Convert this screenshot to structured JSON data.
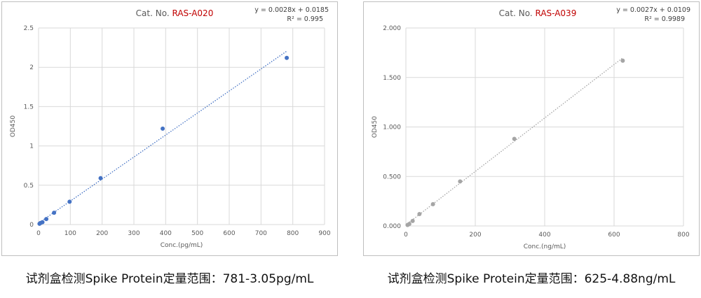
{
  "chart_data": [
    {
      "type": "scatter",
      "title_prefix": "Cat. No.",
      "title_id": "RAS-A020",
      "equation": "y = 0.0028x + 0.0185",
      "r2_text": "R² = 0.995",
      "xlabel": "Conc.(pg/mL)",
      "ylabel": "OD450",
      "xlim": [
        0,
        900
      ],
      "ylim": [
        0,
        2.5
      ],
      "xticks": [
        "0",
        "100",
        "200",
        "300",
        "400",
        "500",
        "600",
        "700",
        "800",
        "900"
      ],
      "yticks": [
        "0",
        "0.5",
        "1",
        "1.5",
        "2",
        "2.5"
      ],
      "grid": true,
      "trendline": {
        "slope": 0.0028,
        "intercept": 0.0185,
        "x_range": [
          3.05,
          781
        ],
        "style": "dotted"
      },
      "series": [
        {
          "x": [
            781,
            390.6,
            195.3,
            97.7,
            48.8,
            24.4,
            12.2,
            6.1,
            3.05
          ],
          "y": [
            2.12,
            1.22,
            0.59,
            0.29,
            0.15,
            0.07,
            0.03,
            0.02,
            0.01
          ]
        }
      ],
      "colors": {
        "point": "#4472c4",
        "trend": "#4472c4"
      },
      "caption": "试剂盒检测Spike Protein定量范围：781-3.05pg/mL"
    },
    {
      "type": "scatter",
      "title_prefix": "Cat. No.",
      "title_id": "RAS-A039",
      "equation": "y = 0.0027x + 0.0109",
      "r2_text": "R² = 0.9989",
      "xlabel": "Conc.(ng/mL)",
      "ylabel": "OD450",
      "xlim": [
        0,
        800
      ],
      "ylim": [
        0,
        2
      ],
      "xticks": [
        "0",
        "200",
        "400",
        "600",
        "800"
      ],
      "yticks": [
        "0.000",
        "0.500",
        "1.000",
        "1.500",
        "2.000"
      ],
      "grid": true,
      "trendline": {
        "slope": 0.0027,
        "intercept": 0.0109,
        "x_range": [
          4.88,
          625
        ],
        "style": "dotted"
      },
      "series": [
        {
          "x": [
            625,
            312.5,
            156.25,
            78.1,
            39.1,
            19.5,
            9.8,
            4.88
          ],
          "y": [
            1.67,
            0.88,
            0.45,
            0.22,
            0.12,
            0.05,
            0.02,
            0.01
          ]
        }
      ],
      "colors": {
        "point": "#a5a5a5",
        "trend": "#a5a5a5"
      },
      "caption": "试剂盒检测Spike Protein定量范围：625-4.88ng/mL"
    }
  ]
}
